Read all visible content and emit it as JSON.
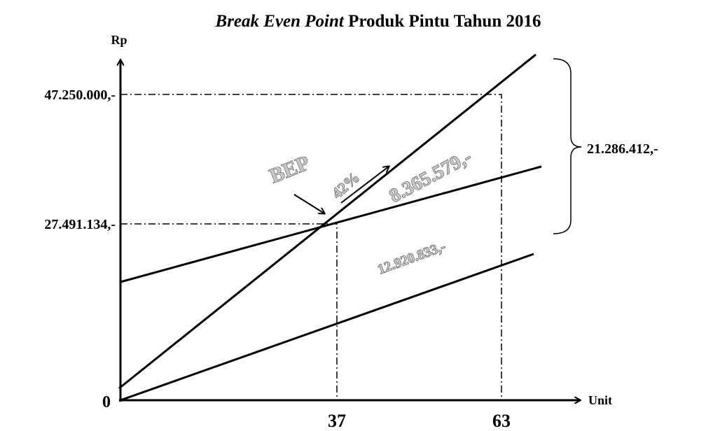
{
  "title": {
    "italic": "Break Even Point",
    "rest": "Produk Pintu Tahun 2016"
  },
  "axes": {
    "y": "Rp",
    "x": "Unit",
    "origin": "0",
    "x_marks": [
      "37",
      "63"
    ]
  },
  "levels": [
    "47.250.000,-",
    "27.491.134,-"
  ],
  "brace_label": "21.286.412,-",
  "annotations": {
    "bep": "BEP",
    "margin": "42%",
    "profit": "8.365.579,-",
    "fixed_cost": "12.920.833,-"
  }
}
